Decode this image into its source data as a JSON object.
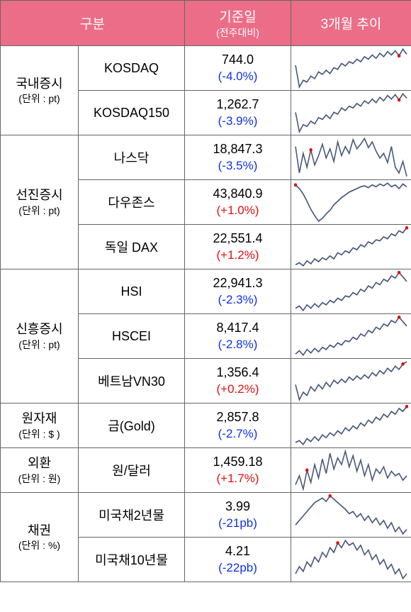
{
  "header": {
    "category": "구분",
    "value": "기준일",
    "value_sub": "(전주대비)",
    "trend": "3개월 추이"
  },
  "sparkline_style": {
    "stroke": "#4a5a7a",
    "stroke_width": 1.6,
    "dot_fill": "#e01010",
    "dot_radius": 2.2,
    "bg": "#ffffff"
  },
  "categories": [
    {
      "label": "국내증시",
      "unit": "(단위 : pt)",
      "rows": [
        {
          "name": "KOSDAQ",
          "value": "744.0",
          "delta": "(-4.0%)",
          "dir": "neg",
          "spark": [
            22,
            48,
            40,
            42,
            35,
            38,
            30,
            33,
            28,
            32,
            25,
            27,
            20,
            23,
            18,
            20,
            15,
            18,
            12,
            15,
            10,
            14,
            8,
            12,
            6,
            10,
            5,
            11,
            3,
            9
          ],
          "dot_index": 27
        },
        {
          "name": "KOSDAQ150",
          "value": "1,262.7",
          "delta": "(-3.9%)",
          "dir": "neg",
          "spark": [
            24,
            46,
            38,
            40,
            34,
            37,
            30,
            32,
            27,
            31,
            24,
            26,
            19,
            22,
            17,
            19,
            14,
            17,
            11,
            14,
            9,
            13,
            7,
            11,
            5,
            9,
            4,
            10,
            3,
            8
          ],
          "dot_index": 27
        },
        {
          "name": "나스닥",
          "value": "18,847.3",
          "delta": "(-3.5%)",
          "dir": "neg",
          "spark": [
            12,
            35,
            18,
            30,
            15,
            28,
            20,
            10,
            22,
            14,
            25,
            8,
            20,
            12,
            18,
            6,
            14,
            10,
            5,
            13,
            8,
            16,
            22,
            18,
            26,
            12,
            30,
            35,
            25,
            38
          ],
          "dot_index": 4
        }
      ]
    },
    {
      "label": "선진증시",
      "unit": "(단위 : pt)",
      "rows": [
        {
          "name": "다우존스",
          "value": "43,840.9",
          "delta": "(+1.0%)",
          "dir": "pos",
          "spark": [
            8,
            12,
            18,
            26,
            35,
            42,
            48,
            45,
            40,
            36,
            30,
            26,
            22,
            19,
            16,
            14,
            12,
            10,
            9,
            11,
            8,
            10,
            7,
            9,
            6,
            10,
            8,
            12,
            7,
            10
          ],
          "dot_index": 0
        },
        {
          "name": "독일 DAX",
          "value": "22,551.4",
          "delta": "(+1.2%)",
          "dir": "pos",
          "spark": [
            42,
            40,
            43,
            38,
            41,
            36,
            39,
            35,
            37,
            33,
            36,
            30,
            32,
            28,
            30,
            25,
            27,
            22,
            24,
            19,
            21,
            17,
            18,
            14,
            16,
            11,
            13,
            8,
            10,
            5
          ],
          "dot_index": 29
        }
      ]
    },
    {
      "label": "신흥증시",
      "unit": "(단위 : pt)",
      "rows": [
        {
          "name": "HSI",
          "value": "22,941.3",
          "delta": "(-2.3%)",
          "dir": "neg",
          "spark": [
            38,
            36,
            40,
            35,
            38,
            34,
            37,
            33,
            35,
            31,
            33,
            29,
            31,
            27,
            28,
            24,
            26,
            21,
            23,
            18,
            20,
            15,
            17,
            12,
            14,
            9,
            11,
            6,
            10,
            14
          ],
          "dot_index": 27
        },
        {
          "name": "HSCEI",
          "value": "8,417.4",
          "delta": "(-2.8%)",
          "dir": "neg",
          "spark": [
            40,
            37,
            41,
            36,
            39,
            35,
            38,
            34,
            36,
            32,
            34,
            30,
            32,
            28,
            29,
            25,
            27,
            22,
            24,
            19,
            21,
            16,
            18,
            13,
            15,
            10,
            12,
            7,
            11,
            15
          ],
          "dot_index": 27
        },
        {
          "name": "베트남VN30",
          "value": "1,356.4",
          "delta": "(+0.2%)",
          "dir": "pos",
          "spark": [
            28,
            42,
            35,
            38,
            30,
            34,
            28,
            32,
            26,
            30,
            24,
            27,
            23,
            26,
            21,
            24,
            20,
            23,
            19,
            22,
            17,
            20,
            15,
            18,
            13,
            16,
            11,
            14,
            9,
            7
          ],
          "dot_index": 28
        }
      ]
    },
    {
      "label": "원자재",
      "unit": "(단위 : $ )",
      "rows": [
        {
          "name": "금(Gold)",
          "value": "2,857.8",
          "delta": "(-2.7%)",
          "dir": "neg",
          "spark": [
            42,
            40,
            44,
            38,
            41,
            36,
            40,
            34,
            37,
            32,
            35,
            30,
            33,
            27,
            30,
            25,
            28,
            22,
            25,
            19,
            22,
            16,
            19,
            13,
            16,
            10,
            13,
            7,
            10,
            5
          ],
          "dot_index": 29
        }
      ]
    },
    {
      "label": "외환",
      "unit": "(단위 : 원)",
      "rows": [
        {
          "name": "원/달러",
          "value": "1,459.18",
          "delta": "(+1.7%)",
          "dir": "pos",
          "spark": [
            38,
            30,
            42,
            25,
            36,
            20,
            32,
            15,
            28,
            10,
            24,
            14,
            20,
            8,
            22,
            12,
            26,
            16,
            30,
            20,
            34,
            24,
            28,
            22,
            32,
            26,
            30,
            28,
            34,
            30
          ],
          "dot_index": 3
        }
      ]
    },
    {
      "label": "채권",
      "unit": "(단위 : %)",
      "rows": [
        {
          "name": "미국채2년물",
          "value": "3.99",
          "delta": "(-21pb)",
          "dir": "neg",
          "spark": [
            32,
            28,
            24,
            20,
            16,
            12,
            10,
            8,
            11,
            6,
            9,
            12,
            15,
            18,
            22,
            20,
            25,
            22,
            28,
            24,
            30,
            26,
            32,
            28,
            35,
            30,
            38,
            34,
            40,
            36
          ],
          "dot_index": 9
        },
        {
          "name": "미국채10년물",
          "value": "4.21",
          "delta": "(-22pb)",
          "dir": "neg",
          "spark": [
            36,
            30,
            34,
            26,
            30,
            22,
            26,
            18,
            22,
            14,
            18,
            10,
            14,
            8,
            12,
            10,
            16,
            12,
            20,
            16,
            24,
            20,
            28,
            24,
            32,
            28,
            36,
            32,
            40,
            36
          ],
          "dot_index": 11
        }
      ]
    }
  ],
  "_merge": [
    {
      "from_cat": 0,
      "row_start": 2,
      "to_cat": 1
    }
  ]
}
